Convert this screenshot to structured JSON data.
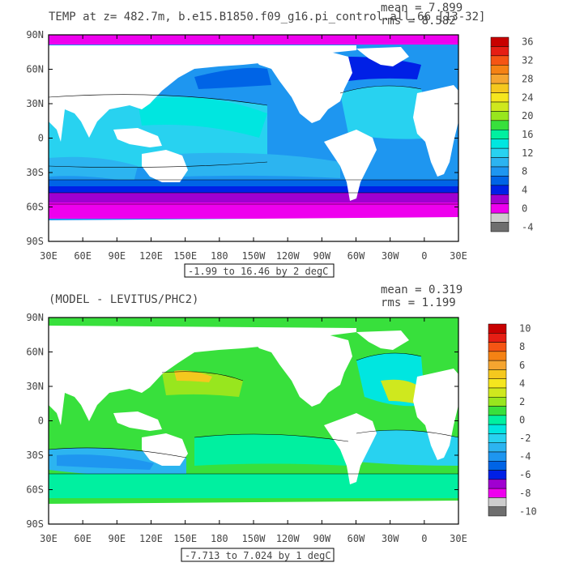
{
  "panels": [
    {
      "title": "TEMP at z= 482.7m, b.e15.B1850.f09_g16.pi_control.all.66 [13-32]",
      "mean_text": "mean = 7.899",
      "rms_text": "rms = 8.582",
      "range_text": "-1.99 to 16.46 by 2 degC"
    },
    {
      "title": "(MODEL - LEVITUS/PHC2)",
      "mean_text": "mean = 0.319",
      "rms_text": "rms = 1.199",
      "range_text": "-7.713 to 7.024 by 1 degC"
    }
  ],
  "chart_data": [
    {
      "type": "heatmap",
      "title": "TEMP at z= 482.7m, b.e15.B1850.f09_g16.pi_control.all.66 [13-32]",
      "xlabel": "",
      "ylabel": "",
      "x_tick_labels": [
        "30E",
        "60E",
        "90E",
        "120E",
        "150E",
        "180",
        "150W",
        "120W",
        "90W",
        "60W",
        "30W",
        "0",
        "30E"
      ],
      "y_tick_labels": [
        "90N",
        "60N",
        "30N",
        "0",
        "30S",
        "60S",
        "90S"
      ],
      "xlim_deg_east": [
        30,
        390
      ],
      "ylim_deg_north": [
        -90,
        90
      ],
      "colorbar_labels": [
        "36",
        "32",
        "28",
        "24",
        "20",
        "16",
        "12",
        "8",
        "4",
        "0",
        "-4"
      ],
      "colorbar_levels": [
        -4,
        -2,
        0,
        2,
        4,
        6,
        8,
        10,
        12,
        14,
        16,
        18,
        20,
        22,
        24,
        26,
        28,
        30,
        32,
        34,
        36
      ],
      "stats": {
        "mean": 7.899,
        "rms": 8.582,
        "min": -1.99,
        "max": 16.46,
        "contour_interval": 2,
        "units": "degC"
      },
      "land_color": "#ffffff"
    },
    {
      "type": "heatmap",
      "title": "(MODEL - LEVITUS/PHC2)",
      "xlabel": "",
      "ylabel": "",
      "x_tick_labels": [
        "30E",
        "60E",
        "90E",
        "120E",
        "150E",
        "180",
        "150W",
        "120W",
        "90W",
        "60W",
        "30W",
        "0",
        "30E"
      ],
      "y_tick_labels": [
        "90N",
        "60N",
        "30N",
        "0",
        "30S",
        "60S",
        "90S"
      ],
      "xlim_deg_east": [
        30,
        390
      ],
      "ylim_deg_north": [
        -90,
        90
      ],
      "colorbar_labels": [
        "10",
        "8",
        "6",
        "4",
        "2",
        "0",
        "-2",
        "-4",
        "-6",
        "-8",
        "-10"
      ],
      "colorbar_levels": [
        -10,
        -9,
        -8,
        -7,
        -6,
        -5,
        -4,
        -3,
        -2,
        -1,
        0,
        1,
        2,
        3,
        4,
        5,
        6,
        7,
        8,
        9,
        10
      ],
      "stats": {
        "mean": 0.319,
        "rms": 1.199,
        "min": -7.713,
        "max": 7.024,
        "contour_interval": 1,
        "units": "degC"
      },
      "land_color": "#ffffff"
    }
  ],
  "colors": {
    "scale": [
      "#6e6e6e",
      "#cdcdcd",
      "#ee00ee",
      "#a000d0",
      "#0020e6",
      "#0064e6",
      "#1e96f0",
      "#2cb4f0",
      "#28d2f0",
      "#00e6e0",
      "#00f0a0",
      "#38e03c",
      "#98e61e",
      "#cfe81e",
      "#f5e61e",
      "#f5c81e",
      "#f5a530",
      "#f58214",
      "#f55514",
      "#e61e14",
      "#c80000"
    ],
    "plot_border": "#000000",
    "text": "#444444"
  }
}
